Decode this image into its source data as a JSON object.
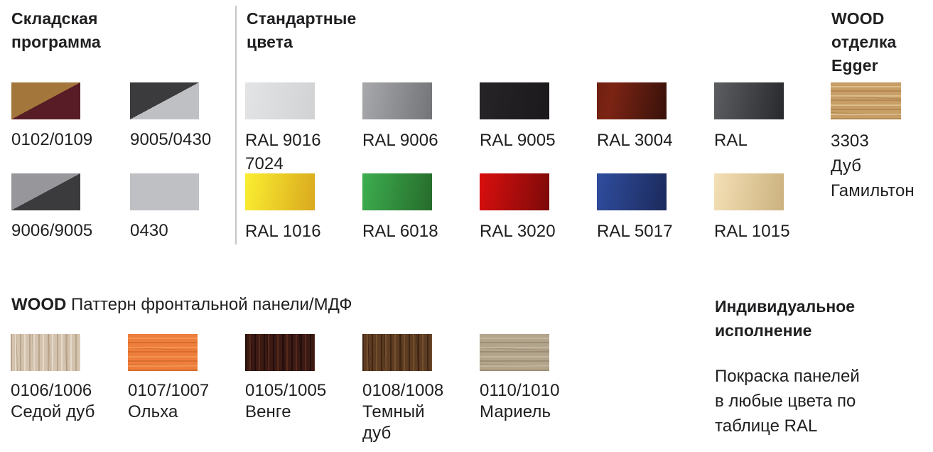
{
  "page": {
    "background": "#ffffff",
    "text_color": "#1f1e20",
    "divider_color": "#c6c6c8"
  },
  "stock_program": {
    "title_lines": [
      "Складская",
      "программа"
    ],
    "rows": [
      [
        {
          "label_lines": [
            "0102/0109"
          ],
          "type": "diagonal",
          "top_left": "#a3773b",
          "bottom_right": "#571c26"
        },
        {
          "label_lines": [
            "9005/0430"
          ],
          "type": "diagonal",
          "top_left": "#3b3b3d",
          "bottom_right": "#bfc0c4"
        }
      ],
      [
        {
          "label_lines": [
            "9006/9005"
          ],
          "type": "diagonal",
          "top_left": "#97979b",
          "bottom_right": "#3b3b3d"
        },
        {
          "label_lines": [
            "0430"
          ],
          "type": "solid",
          "color": "#bfc0c4"
        }
      ]
    ]
  },
  "standard_colors": {
    "title_lines": [
      "Стандартные",
      "цвета"
    ],
    "rows": [
      [
        {
          "label_lines": [
            "RAL 9016",
            "7024"
          ],
          "type": "gradient",
          "from": "#e3e4e6",
          "to": "#d1d2d4"
        },
        {
          "label_lines": [
            "RAL 9006"
          ],
          "type": "gradient",
          "from": "#a8a9ad",
          "to": "#737478"
        },
        {
          "label_lines": [
            "RAL 9005"
          ],
          "type": "gradient",
          "from": "#272427",
          "to": "#1b191b"
        },
        {
          "label_lines": [
            "RAL 3004"
          ],
          "type": "gradient",
          "from": "#6f1f10",
          "mid": "#7c2414",
          "mid_pos": "22%",
          "to": "#38110a"
        },
        {
          "label_lines": [
            "RAL"
          ],
          "type": "gradient",
          "from": "#5c5e62",
          "to": "#28292d"
        }
      ],
      [
        {
          "label_lines": [
            "RAL 1016"
          ],
          "type": "gradient",
          "from": "#fbef31",
          "to": "#d9a81e"
        },
        {
          "label_lines": [
            "RAL 6018"
          ],
          "type": "gradient",
          "from": "#3dae4f",
          "to": "#266b2b"
        },
        {
          "label_lines": [
            "RAL 3020"
          ],
          "type": "gradient",
          "from": "#d90f0e",
          "to": "#7c0a09"
        },
        {
          "label_lines": [
            "RAL 5017"
          ],
          "type": "gradient",
          "from": "#2f4d9e",
          "to": "#1c2a5c"
        },
        {
          "label_lines": [
            "RAL 1015"
          ],
          "type": "gradient",
          "from": "#f4e0b6",
          "to": "#cbb17e"
        }
      ]
    ]
  },
  "wood_egger": {
    "title_lines": [
      "WOOD",
      "отделка",
      "Egger"
    ],
    "swatches": [
      {
        "label_lines": [
          "3303",
          "Дуб",
          "Гамильтон"
        ],
        "type": "wood",
        "grain": "horizontal",
        "base": "#c79e66",
        "streak": "rgba(150,105,55,0.40)",
        "streak2": "rgba(238,214,170,0.55)"
      }
    ]
  },
  "wood_pattern": {
    "title_bold": "WOOD",
    "title_rest": " Паттерн фронтальной панели/МДФ",
    "swatches": [
      {
        "label_lines": [
          "0106/1006",
          "Седой дуб"
        ],
        "type": "wood",
        "grain": "vertical",
        "base": "#d3c3ae",
        "streak": "rgba(160,135,105,0.50)",
        "streak2": "rgba(242,233,220,0.60)"
      },
      {
        "label_lines": [
          "0107/1007",
          "Ольха"
        ],
        "type": "wood",
        "grain": "horizontal",
        "base": "#ee7e3c",
        "streak": "rgba(190,88,24,0.45)",
        "streak2": "rgba(250,165,100,0.55)"
      },
      {
        "label_lines": [
          "0105/1005",
          "Венге"
        ],
        "type": "wood",
        "grain": "vertical",
        "base": "#3c1a14",
        "streak": "rgba(18,6,6,0.60)",
        "streak2": "rgba(112,56,34,0.50)"
      },
      {
        "label_lines": [
          "0108/1008",
          "Темный",
          "дуб"
        ],
        "type": "wood",
        "grain": "vertical",
        "base": "#5e3c22",
        "streak": "rgba(42,24,10,0.60)",
        "streak2": "rgba(132,96,56,0.55)"
      },
      {
        "label_lines": [
          "0110/1010",
          "Мариель"
        ],
        "type": "wood",
        "grain": "horizontal",
        "base": "#b3a48c",
        "streak": "rgba(132,113,86,0.45)",
        "streak2": "rgba(206,196,176,0.55)"
      }
    ]
  },
  "custom_finish": {
    "title_lines": [
      "Индивидуальное",
      "исполнение"
    ],
    "body_lines": [
      "Покраска панелей",
      "в любые цвета по",
      "таблице RAL"
    ]
  }
}
